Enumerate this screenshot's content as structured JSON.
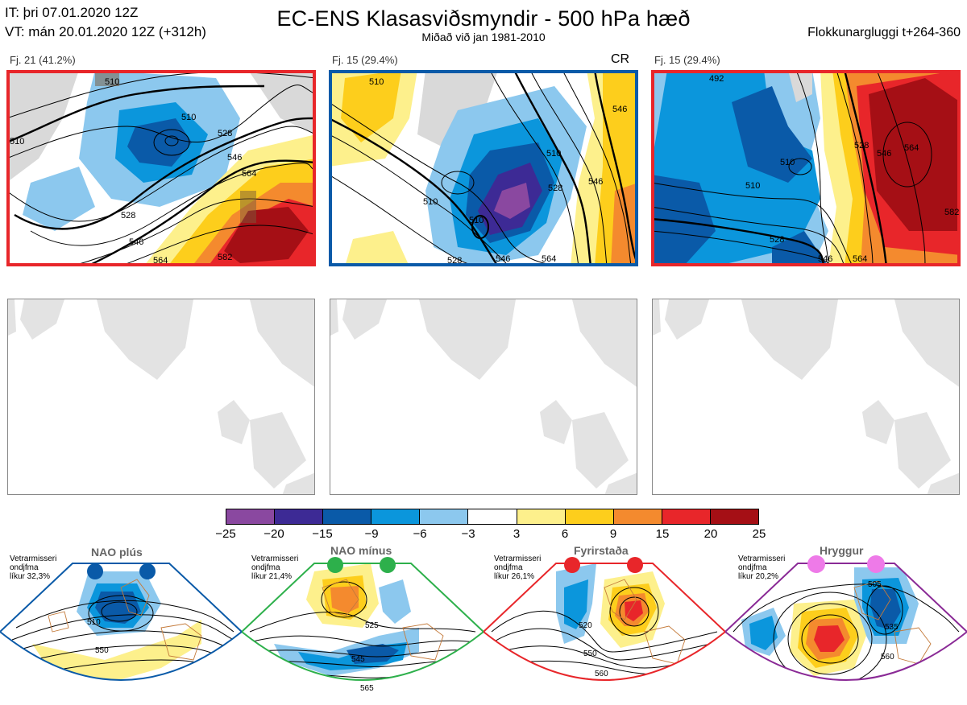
{
  "header": {
    "init_time": "IT: þri 07.01.2020 12Z",
    "valid_time": "VT: mán 20.01.2020 12Z  (+312h)",
    "title": "EC-ENS Klasasviðsmyndir - 500 hPa hæð",
    "subtitle": "Miðað við jan 1981-2010",
    "window": "Flokkunargluggi t+264-360"
  },
  "clusters": [
    {
      "label": "Fj. 21 (41.2%)",
      "badge": "",
      "frame_color": "#e8262a",
      "contour_labels": [
        "510",
        "510",
        "510",
        "528",
        "546",
        "564",
        "528",
        "546",
        "564",
        "582"
      ]
    },
    {
      "label": "Fj. 15 (29.4%)",
      "badge": "CR",
      "frame_color": "#0a5aa8",
      "contour_labels": [
        "510",
        "510",
        "510",
        "528",
        "546",
        "510",
        "528",
        "546",
        "564",
        "546"
      ]
    },
    {
      "label": "Fj. 15 (29.4%)",
      "badge": "",
      "frame_color": "#e8262a",
      "contour_labels": [
        "492",
        "510",
        "528",
        "546",
        "564",
        "510",
        "528",
        "546",
        "564",
        "582"
      ]
    }
  ],
  "colorbar": {
    "ticks": [
      "−25",
      "−20",
      "−15",
      "−9",
      "−6",
      "−3",
      "3",
      "6",
      "9",
      "15",
      "20",
      "25"
    ],
    "colors": [
      "#8a48a0",
      "#3d2a95",
      "#0a5aa8",
      "#0b96dc",
      "#8cc8ee",
      "#ffffff",
      "#fdf08c",
      "#fdce1c",
      "#f48a2e",
      "#e8262a",
      "#a50f15"
    ]
  },
  "regimes": [
    {
      "name": "NAO plús",
      "info": [
        "Vetrarmisseri",
        "ondjfma",
        "líkur 32,3%"
      ],
      "dot_color": "#0a5aa8",
      "frame_color": "#0a5aa8",
      "contours": [
        "510",
        "550"
      ]
    },
    {
      "name": "NAO mínus",
      "info": [
        "Vetrarmisseri",
        "ondjfma",
        "líkur 21,4%"
      ],
      "dot_color": "#2db04b",
      "frame_color": "#2db04b",
      "contours": [
        "525",
        "545",
        "565"
      ]
    },
    {
      "name": "Fyrirstaða",
      "info": [
        "Vetrarmisseri",
        "ondjfma",
        "líkur 26,1%"
      ],
      "dot_color": "#e8262a",
      "frame_color": "#e8262a",
      "contours": [
        "520",
        "550",
        "560"
      ]
    },
    {
      "name": "Hryggur",
      "info": [
        "Vetrarmisseri",
        "ondjfma",
        "líkur 20,2%"
      ],
      "dot_color": "#ee7ae8",
      "frame_color": "#8a2a96",
      "contours": [
        "505",
        "535",
        "560"
      ]
    }
  ]
}
